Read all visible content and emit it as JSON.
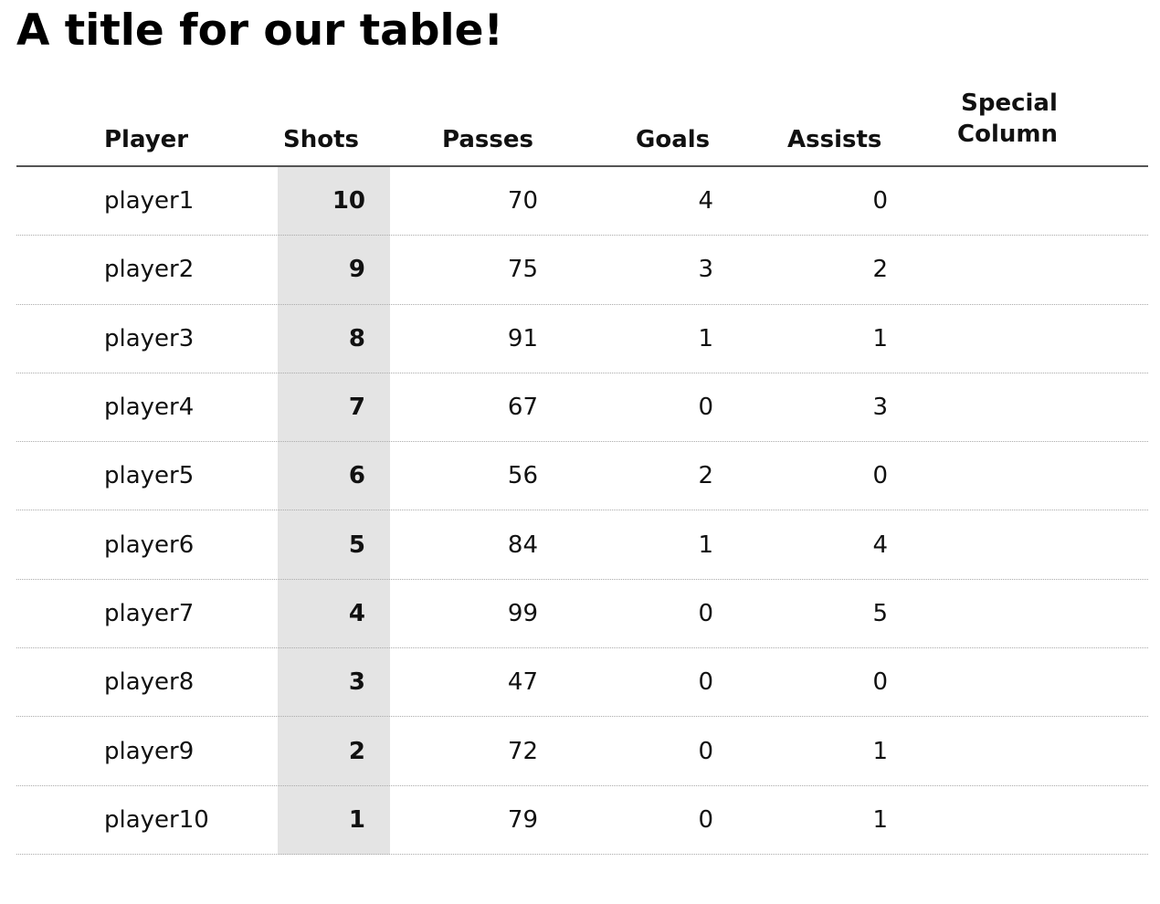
{
  "chart_data": {
    "type": "table",
    "title": "A title for our table!",
    "columns": [
      "Player",
      "Shots",
      "Passes",
      "Goals",
      "Assists",
      "Special Column"
    ],
    "highlighted_column": "Shots",
    "highlight_color": "#e4e4e4",
    "rows": [
      {
        "player": "player1",
        "shots": "10",
        "passes": "70",
        "goals": "4",
        "assists": "0",
        "special": ""
      },
      {
        "player": "player2",
        "shots": "9",
        "passes": "75",
        "goals": "3",
        "assists": "2",
        "special": ""
      },
      {
        "player": "player3",
        "shots": "8",
        "passes": "91",
        "goals": "1",
        "assists": "1",
        "special": ""
      },
      {
        "player": "player4",
        "shots": "7",
        "passes": "67",
        "goals": "0",
        "assists": "3",
        "special": ""
      },
      {
        "player": "player5",
        "shots": "6",
        "passes": "56",
        "goals": "2",
        "assists": "0",
        "special": ""
      },
      {
        "player": "player6",
        "shots": "5",
        "passes": "84",
        "goals": "1",
        "assists": "4",
        "special": ""
      },
      {
        "player": "player7",
        "shots": "4",
        "passes": "99",
        "goals": "0",
        "assists": "5",
        "special": ""
      },
      {
        "player": "player8",
        "shots": "3",
        "passes": "47",
        "goals": "0",
        "assists": "0",
        "special": ""
      },
      {
        "player": "player9",
        "shots": "2",
        "passes": "72",
        "goals": "0",
        "assists": "1",
        "special": ""
      },
      {
        "player": "player10",
        "shots": "1",
        "passes": "79",
        "goals": "0",
        "assists": "1",
        "special": ""
      }
    ]
  },
  "special_header": {
    "line1": "Special",
    "line2": "Column"
  }
}
